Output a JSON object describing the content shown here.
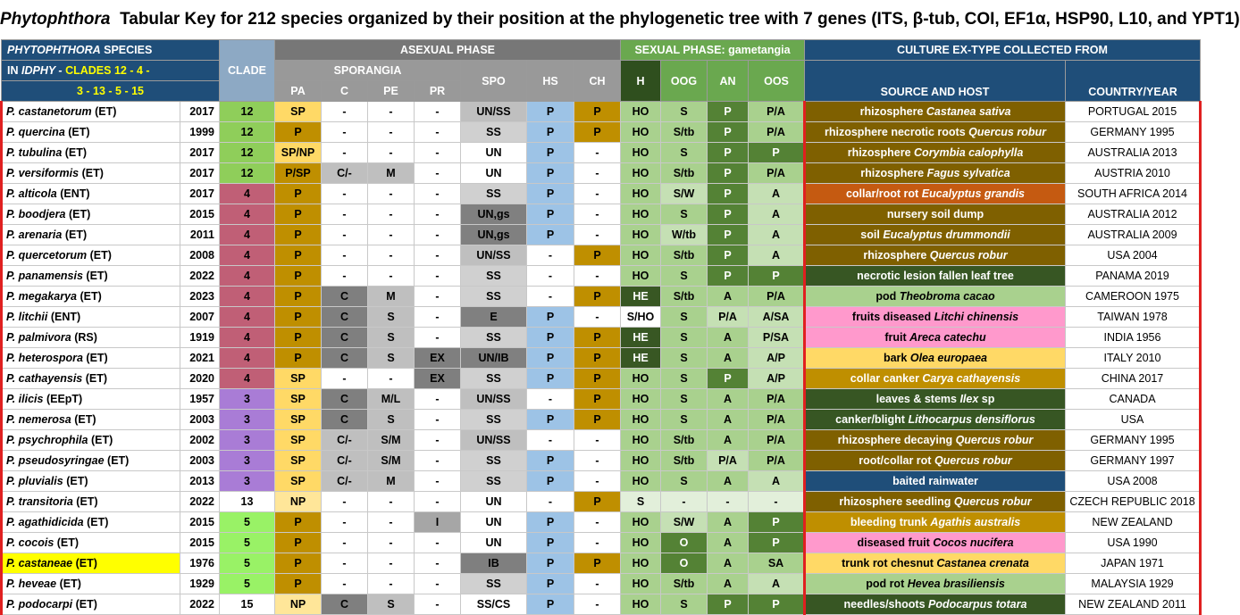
{
  "title": {
    "genus": "Phytophthora",
    "rest": "Tabular Key for 212 species organized by their position at the phylogenetic tree with 7 genes (ITS, β-tub, COI, EF1α, HSP90, L10, and YPT1)"
  },
  "header": {
    "species_line1_genus": "PHYTOPHTHORA",
    "species_line1_rest": "SPECIES",
    "species_line2_a": "IN",
    "species_line2_b": "IDPHY -",
    "species_line2_c": "CLADES 12 - 4 -",
    "species_line3": "3 - 13 - 5 - 15",
    "clade": "CLADE",
    "asexual": "ASEXUAL PHASE",
    "sporangia": "SPORANGIA",
    "sexual": "SEXUAL PHASE: gametangia",
    "culture": "CULTURE EX-TYPE COLLECTED FROM",
    "cols": {
      "pa": "PA",
      "c": "C",
      "pe": "PE",
      "pr": "PR",
      "spo": "SPO",
      "hs": "HS",
      "ch": "CH",
      "h": "H",
      "oog": "OOG",
      "an": "AN",
      "oos": "OOS",
      "source": "SOURCE AND HOST",
      "country": "COUNTRY/YEAR"
    }
  },
  "colors": {
    "clade12": "#8fce5a",
    "clade4": "#c05f76",
    "clade3": "#a97cd6",
    "clade13": "#ffffff",
    "clade5": "#99f266",
    "clade15": "#ffffff",
    "separator": "#e02020"
  },
  "rows": [
    {
      "sp": "P. castanetorum",
      "tag": "(ET)",
      "year": "2017",
      "clade": "12",
      "pa": "SP",
      "c": "-",
      "pe": "-",
      "pr": "-",
      "spo": "UN/SS",
      "hs": "P",
      "ch": "P",
      "h": "HO",
      "oog": "S",
      "an": "P",
      "oos": "P/A",
      "host_pre": "rhizosphere ",
      "host_it": "Castanea sativa",
      "host_post": "",
      "country": "PORTUGAL 2015"
    },
    {
      "sp": "P. quercina",
      "tag": "(ET)",
      "year": "1999",
      "clade": "12",
      "pa": "P",
      "c": "-",
      "pe": "-",
      "pr": "-",
      "spo": "SS",
      "hs": "P",
      "ch": "P",
      "h": "HO",
      "oog": "S/tb",
      "an": "P",
      "oos": "P/A",
      "host_pre": "rhizosphere necrotic roots ",
      "host_it": "Quercus robur",
      "host_post": "",
      "country": "GERMANY 1995"
    },
    {
      "sp": "P. tubulina",
      "tag": "(ET)",
      "year": "2017",
      "clade": "12",
      "pa": "SP/NP",
      "c": "-",
      "pe": "-",
      "pr": "-",
      "spo": "UN",
      "hs": "P",
      "ch": "-",
      "h": "HO",
      "oog": "S",
      "an": "P",
      "oos": "P",
      "host_pre": "rhizosphere ",
      "host_it": "Corymbia calophylla",
      "host_post": "",
      "country": "AUSTRALIA 2013"
    },
    {
      "sp": "P. versiformis",
      "tag": "(ET)",
      "year": "2017",
      "clade": "12",
      "pa": "P/SP",
      "c": "C/-",
      "pe": "M",
      "pr": "-",
      "spo": "UN",
      "hs": "P",
      "ch": "-",
      "h": "HO",
      "oog": "S/tb",
      "an": "P",
      "oos": "P/A",
      "host_pre": "rhizosphere ",
      "host_it": "Fagus sylvatica",
      "host_post": "",
      "country": "AUSTRIA 2010"
    },
    {
      "sp": "P. alticola",
      "tag": "(ENT)",
      "year": "2017",
      "clade": "4",
      "pa": "P",
      "c": "-",
      "pe": "-",
      "pr": "-",
      "spo": "SS",
      "hs": "P",
      "ch": "-",
      "h": "HO",
      "oog": "S/W",
      "an": "P",
      "oos": "A",
      "host_pre": "collar/root rot ",
      "host_it": "Eucalyptus grandis",
      "host_post": "",
      "country": "SOUTH AFRICA 2014"
    },
    {
      "sp": "P. boodjera",
      "tag": "(ET)",
      "year": "2015",
      "clade": "4",
      "pa": "P",
      "c": "-",
      "pe": "-",
      "pr": "-",
      "spo": "UN,gs",
      "hs": "P",
      "ch": "-",
      "h": "HO",
      "oog": "S",
      "an": "P",
      "oos": "A",
      "host_pre": "nursery soil dump",
      "host_it": "",
      "host_post": "",
      "country": "AUSTRALIA 2012"
    },
    {
      "sp": "P. arenaria",
      "tag": "(ET)",
      "year": "2011",
      "clade": "4",
      "pa": "P",
      "c": "-",
      "pe": "-",
      "pr": "-",
      "spo": "UN,gs",
      "hs": "P",
      "ch": "-",
      "h": "HO",
      "oog": "W/tb",
      "an": "P",
      "oos": "A",
      "host_pre": "soil ",
      "host_it": "Eucalyptus drummondii",
      "host_post": "",
      "country": "AUSTRALIA 2009"
    },
    {
      "sp": "P. quercetorum",
      "tag": "(ET)",
      "year": "2008",
      "clade": "4",
      "pa": "P",
      "c": "-",
      "pe": "-",
      "pr": "-",
      "spo": "UN/SS",
      "hs": "-",
      "ch": "P",
      "h": "HO",
      "oog": "S/tb",
      "an": "P",
      "oos": "A",
      "host_pre": "rhizosphere ",
      "host_it": "Quercus robur",
      "host_post": "",
      "country": "USA 2004"
    },
    {
      "sp": "P. panamensis",
      "tag": "(ET)",
      "year": "2022",
      "clade": "4",
      "pa": "P",
      "c": "-",
      "pe": "-",
      "pr": "-",
      "spo": "SS",
      "hs": "-",
      "ch": "-",
      "h": "HO",
      "oog": "S",
      "an": "P",
      "oos": "P",
      "host_pre": "necrotic lesion fallen leaf tree",
      "host_it": "",
      "host_post": "",
      "country": "PANAMA 2019"
    },
    {
      "sp": "P. megakarya",
      "tag": "(ET)",
      "year": "2023",
      "clade": "4",
      "pa": "P",
      "c": "C",
      "pe": "M",
      "pr": "-",
      "spo": "SS",
      "hs": "-",
      "ch": "P",
      "h": "HE",
      "oog": "S/tb",
      "an": "A",
      "oos": "P/A",
      "host_pre": "pod ",
      "host_it": "Theobroma cacao",
      "host_post": "",
      "country": "CAMEROON 1975"
    },
    {
      "sp": "P. litchii",
      "tag": "(ENT)",
      "year": "2007",
      "clade": "4",
      "pa": "P",
      "c": "C",
      "pe": "S",
      "pr": "-",
      "spo": "E",
      "hs": "P",
      "ch": "-",
      "h": "S/HO",
      "oog": "S",
      "an": "P/A",
      "oos": "A/SA",
      "host_pre": "fruits diseased ",
      "host_it": "Litchi chinensis",
      "host_post": "",
      "country": "TAIWAN 1978"
    },
    {
      "sp": "P. palmivora",
      "tag": "(RS)",
      "year": "1919",
      "clade": "4",
      "pa": "P",
      "c": "C",
      "pe": "S",
      "pr": "-",
      "spo": "SS",
      "hs": "P",
      "ch": "P",
      "h": "HE",
      "oog": "S",
      "an": "A",
      "oos": "P/SA",
      "host_pre": "fruit ",
      "host_it": "Areca catechu",
      "host_post": "",
      "country": "INDIA 1956"
    },
    {
      "sp": "P. heterospora",
      "tag": "(ET)",
      "year": "2021",
      "clade": "4",
      "pa": "P",
      "c": "C",
      "pe": "S",
      "pr": "EX",
      "spo": "UN/IB",
      "hs": "P",
      "ch": "P",
      "h": "HE",
      "oog": "S",
      "an": "A",
      "oos": "A/P",
      "host_pre": "bark ",
      "host_it": "Olea europaea",
      "host_post": "",
      "country": "ITALY 2010"
    },
    {
      "sp": "P. cathayensis",
      "tag": "(ET)",
      "year": "2020",
      "clade": "4",
      "pa": "SP",
      "c": "-",
      "pe": "-",
      "pr": "EX",
      "spo": "SS",
      "hs": "P",
      "ch": "P",
      "h": "HO",
      "oog": "S",
      "an": "P",
      "oos": "A/P",
      "host_pre": "collar canker ",
      "host_it": "Carya cathayensis",
      "host_post": "",
      "country": "CHINA 2017"
    },
    {
      "sp": "P. ilicis",
      "tag": "(EEpT)",
      "year": "1957",
      "clade": "3",
      "pa": "SP",
      "c": "C",
      "pe": "M/L",
      "pr": "-",
      "spo": "UN/SS",
      "hs": "-",
      "ch": "P",
      "h": "HO",
      "oog": "S",
      "an": "A",
      "oos": "P/A",
      "host_pre": "leaves & stems ",
      "host_it": "Ilex",
      "host_post": " sp",
      "country": "CANADA"
    },
    {
      "sp": "P. nemerosa",
      "tag": "(ET)",
      "year": "2003",
      "clade": "3",
      "pa": "SP",
      "c": "C",
      "pe": "S",
      "pr": "-",
      "spo": "SS",
      "hs": "P",
      "ch": "P",
      "h": "HO",
      "oog": "S",
      "an": "A",
      "oos": "P/A",
      "host_pre": "canker/blight ",
      "host_it": "Lithocarpus densiflorus",
      "host_post": "",
      "country": "USA"
    },
    {
      "sp": "P. psychrophila",
      "tag": "(ET)",
      "year": "2002",
      "clade": "3",
      "pa": "SP",
      "c": "C/-",
      "pe": "S/M",
      "pr": "-",
      "spo": "UN/SS",
      "hs": "-",
      "ch": "-",
      "h": "HO",
      "oog": "S/tb",
      "an": "A",
      "oos": "P/A",
      "host_pre": "rhizosphere decaying ",
      "host_it": "Quercus robur",
      "host_post": "",
      "country": "GERMANY 1995"
    },
    {
      "sp": "P. pseudosyringae",
      "tag": "(ET)",
      "year": "2003",
      "clade": "3",
      "pa": "SP",
      "c": "C/-",
      "pe": "S/M",
      "pr": "-",
      "spo": "SS",
      "hs": "P",
      "ch": "-",
      "h": "HO",
      "oog": "S/tb",
      "an": "P/A",
      "oos": "P/A",
      "host_pre": "root/collar rot  ",
      "host_it": "Quercus robur",
      "host_post": "",
      "country": "GERMANY 1997"
    },
    {
      "sp": "P. pluvialis",
      "tag": "(ET)",
      "year": "2013",
      "clade": "3",
      "pa": "SP",
      "c": "C/-",
      "pe": "M",
      "pr": "-",
      "spo": "SS",
      "hs": "P",
      "ch": "-",
      "h": "HO",
      "oog": "S",
      "an": "A",
      "oos": "A",
      "host_pre": "baited rainwater",
      "host_it": "",
      "host_post": "",
      "country": "USA 2008"
    },
    {
      "sp": "P. transitoria",
      "tag": "(ET)",
      "year": "2022",
      "clade": "13",
      "pa": "NP",
      "c": "-",
      "pe": "-",
      "pr": "-",
      "spo": "UN",
      "hs": "-",
      "ch": "P",
      "h": "S",
      "oog": "-",
      "an": "-",
      "oos": "-",
      "host_pre": "rhizosphere seedling ",
      "host_it": "Quercus robur",
      "host_post": "",
      "country": "CZECH REPUBLIC 2018"
    },
    {
      "sp": "P. agathidicida",
      "tag": "(ET)",
      "year": "2015",
      "clade": "5",
      "pa": "P",
      "c": "-",
      "pe": "-",
      "pr": "I",
      "spo": "UN",
      "hs": "P",
      "ch": "-",
      "h": "HO",
      "oog": "S/W",
      "an": "A",
      "oos": "P",
      "host_pre": "bleeding trunk ",
      "host_it": "Agathis australis",
      "host_post": "",
      "country": "NEW ZEALAND"
    },
    {
      "sp": "P. cocois",
      "tag": "(ET)",
      "year": "2015",
      "clade": "5",
      "pa": "P",
      "c": "-",
      "pe": "-",
      "pr": "-",
      "spo": "UN",
      "hs": "P",
      "ch": "-",
      "h": "HO",
      "oog": "O",
      "an": "A",
      "oos": "P",
      "host_pre": "diseased fruit ",
      "host_it": "Cocos nucifera",
      "host_post": "",
      "country": "USA 1990"
    },
    {
      "sp": "P. castaneae",
      "tag": "(ET)",
      "year": "1976",
      "clade": "5",
      "pa": "P",
      "c": "-",
      "pe": "-",
      "pr": "-",
      "spo": "IB",
      "hs": "P",
      "ch": "P",
      "h": "HO",
      "oog": "O",
      "an": "A",
      "oos": "SA",
      "host_pre": "trunk rot chesnut ",
      "host_it": "Castanea crenata",
      "host_post": "",
      "country": "JAPAN 1971"
    },
    {
      "sp": "P. heveae",
      "tag": "(ET)",
      "year": "1929",
      "clade": "5",
      "pa": "P",
      "c": "-",
      "pe": "-",
      "pr": "-",
      "spo": "SS",
      "hs": "P",
      "ch": "-",
      "h": "HO",
      "oog": "S/tb",
      "an": "A",
      "oos": "A",
      "host_pre": "pod rot ",
      "host_it": "Hevea brasiliensis",
      "host_post": "",
      "country": "MALAYSIA 1929"
    },
    {
      "sp": "P. podocarpi",
      "tag": "(ET)",
      "year": "2022",
      "clade": "15",
      "pa": "NP",
      "c": "C",
      "pe": "S",
      "pr": "-",
      "spo": "SS/CS",
      "hs": "P",
      "ch": "-",
      "h": "HO",
      "oog": "S",
      "an": "P",
      "oos": "P",
      "host_pre": "needles/shoots ",
      "host_it": "Podocarpus totara",
      "host_post": "",
      "country": "NEW ZEALAND 2011"
    }
  ]
}
